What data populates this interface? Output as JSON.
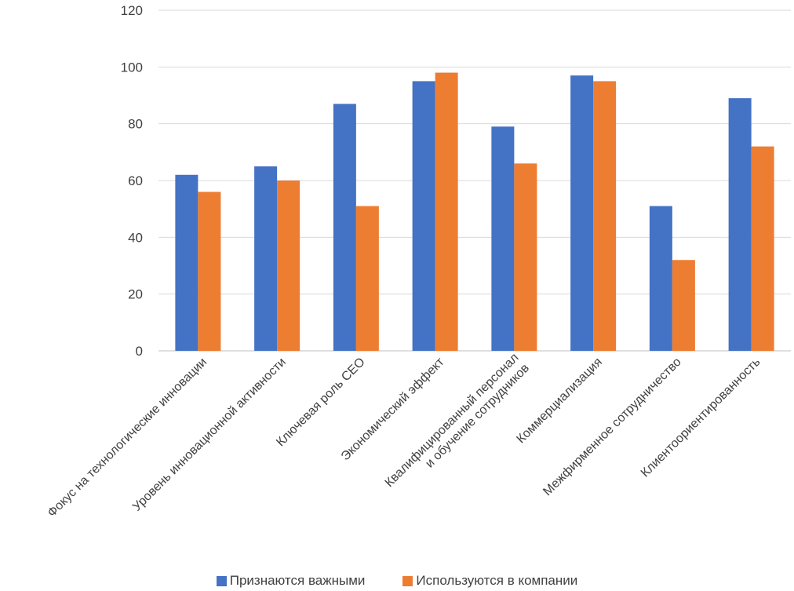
{
  "chart_data": {
    "type": "bar",
    "categories": [
      [
        "Фокус на технологические инновации"
      ],
      [
        "Уровень инновационной активности"
      ],
      [
        "Ключевая роль CEO"
      ],
      [
        "Экономический эффект"
      ],
      [
        "Квалифицированный персонал",
        "и обучение сотрудников"
      ],
      [
        "Коммерциализация"
      ],
      [
        "Межфирменное сотрудничество"
      ],
      [
        "Клиентоориентированность"
      ]
    ],
    "series": [
      {
        "name": "Признаются важными",
        "color": "#4472C4",
        "values": [
          62,
          65,
          87,
          95,
          79,
          97,
          51,
          89
        ]
      },
      {
        "name": "Используются в компании",
        "color": "#ED7D31",
        "values": [
          56,
          60,
          51,
          98,
          66,
          95,
          32,
          72
        ]
      }
    ],
    "ylim": [
      0,
      120
    ],
    "yticks": [
      "0",
      "20",
      "40",
      "60",
      "80",
      "100",
      "120"
    ],
    "grid": true,
    "legend_position": "bottom"
  }
}
